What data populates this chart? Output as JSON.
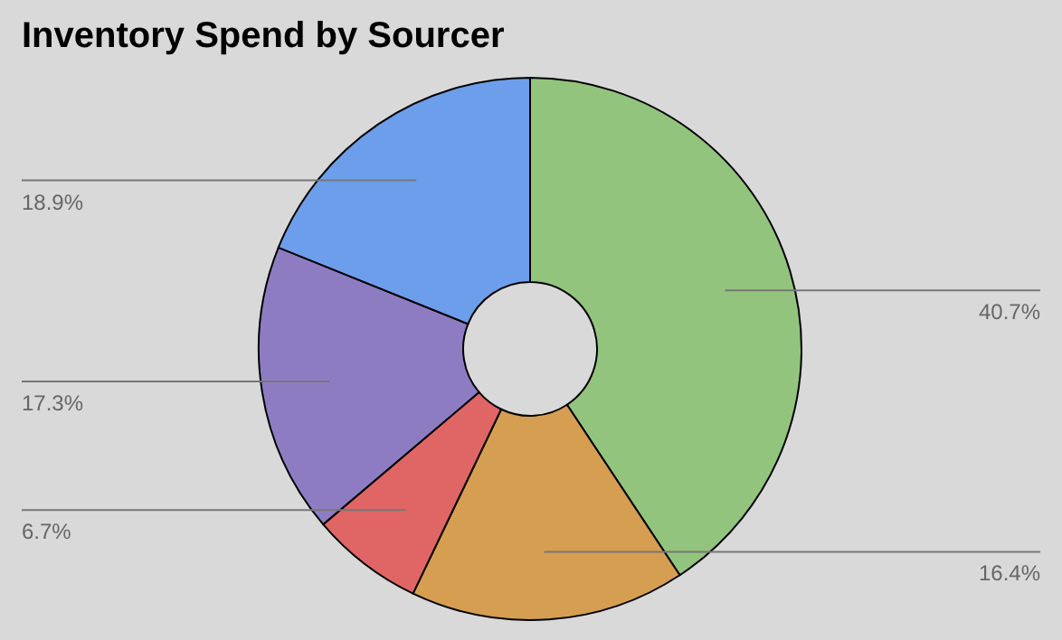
{
  "chart_data": {
    "type": "donut",
    "title": "Inventory Spend by Sourcer",
    "categories": [
      null,
      null,
      null,
      null,
      null
    ],
    "values": [
      40.7,
      16.4,
      6.7,
      17.3,
      18.9
    ],
    "colors": [
      "#93c47d",
      "#d69e51",
      "#e06666",
      "#8e7cc3",
      "#6d9eeb"
    ],
    "value_labels": [
      "40.7%",
      "16.4%",
      "6.7%",
      "17.3%",
      "18.9%"
    ],
    "legend": false
  }
}
